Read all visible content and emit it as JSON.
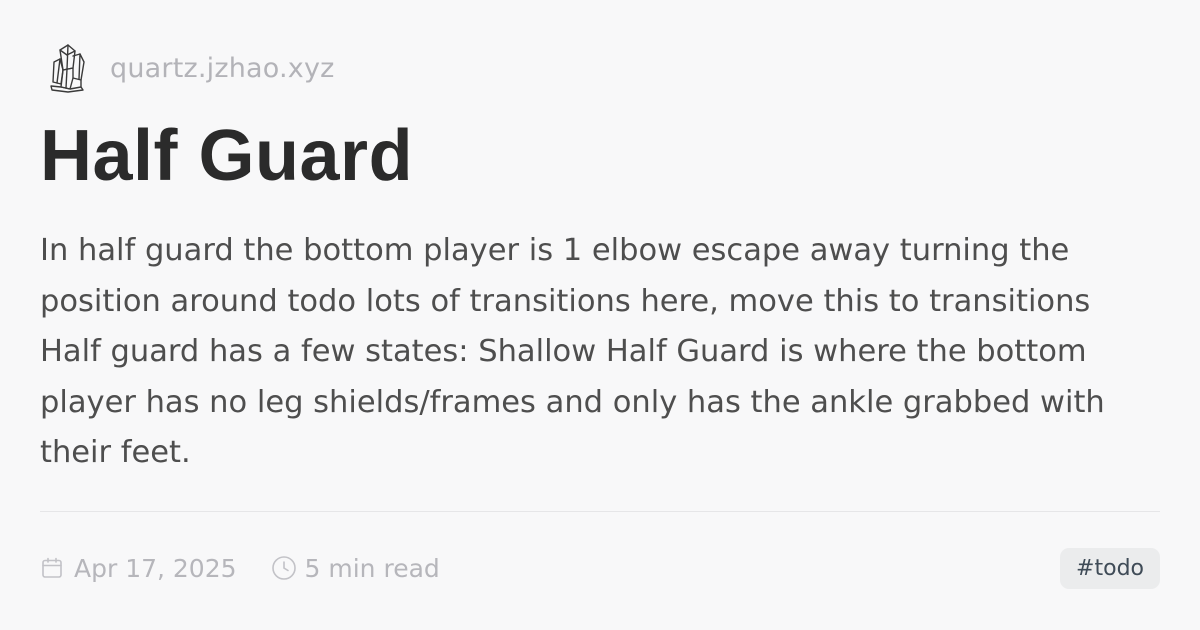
{
  "site": {
    "name": "quartz.jzhao.xyz",
    "logo_icon": "crystal-logo-icon"
  },
  "page": {
    "title": "Half Guard",
    "description": "In half guard the bottom player is 1 elbow escape away turning the position around todo lots of transitions here, move this to transitions Half guard has a few states: Shallow Half Guard is where the bottom player has no leg shields/frames and only has the ankle grabbed with their feet."
  },
  "meta": {
    "date": "Apr 17, 2025",
    "date_icon": "calendar-icon",
    "read_time": "5 min read",
    "read_time_icon": "clock-icon",
    "tags": [
      "#todo"
    ]
  },
  "colors": {
    "background": "#f8f8f9",
    "title": "#2b2b2b",
    "body_text": "#4e4e4e",
    "muted": "#b6b6bb",
    "tag_bg": "#ebeced",
    "tag_text": "#3f4b57"
  }
}
